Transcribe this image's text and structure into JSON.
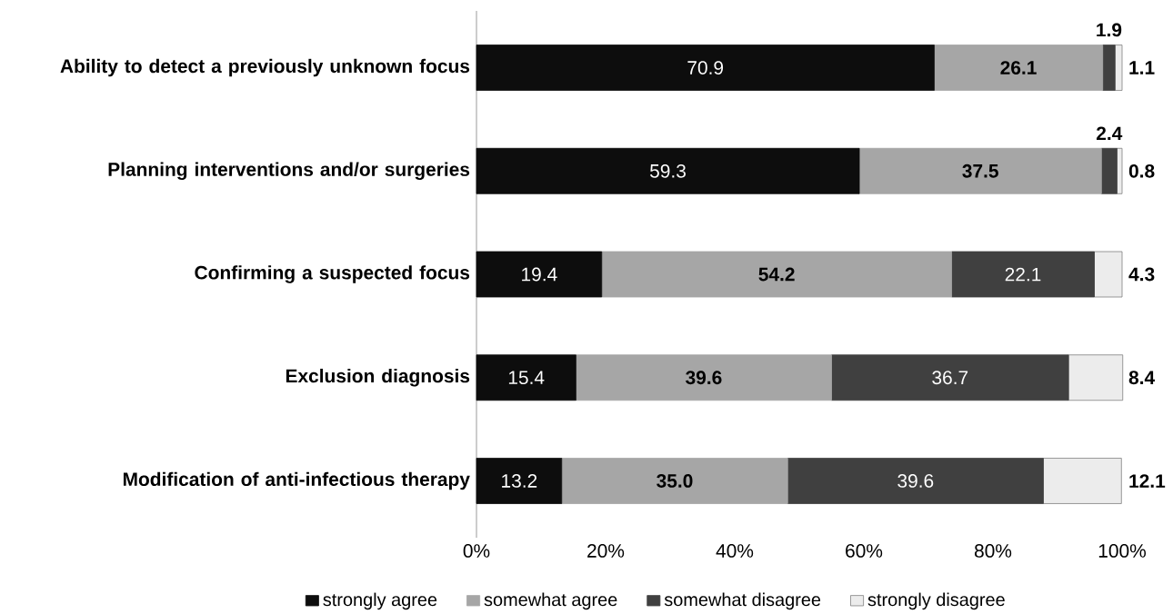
{
  "chart_data": {
    "type": "bar",
    "orientation": "horizontal",
    "stacked": true,
    "legend": "bottom",
    "categories": [
      "Ability to detect a previously unknown focus",
      "Planning interventions and/or surgeries",
      "Confirming a suspected focus",
      "Exclusion diagnosis",
      "Modification of anti-infectious therapy"
    ],
    "xlim": [
      0,
      100
    ],
    "xticks": [
      {
        "value": 0,
        "label": "0%"
      },
      {
        "value": 20,
        "label": "20%"
      },
      {
        "value": 40,
        "label": "40%"
      },
      {
        "value": 60,
        "label": "60%"
      },
      {
        "value": 80,
        "label": "80%"
      },
      {
        "value": 100,
        "label": "100%"
      }
    ],
    "series": [
      {
        "name": "strongly agree",
        "color": "#0d0d0d",
        "values": [
          70.9,
          59.3,
          19.4,
          15.4,
          13.2
        ],
        "value_labels": [
          "70.9",
          "59.3",
          "19.4",
          "15.4",
          "13.2"
        ]
      },
      {
        "name": "somewhat agree",
        "color": "#a6a6a6",
        "values": [
          26.1,
          37.5,
          54.2,
          39.6,
          35.0
        ],
        "value_labels": [
          "26.1",
          "37.5",
          "54.2",
          "39.6",
          "35.0"
        ]
      },
      {
        "name": "somewhat disagree",
        "color": "#404040",
        "values": [
          1.9,
          2.4,
          22.1,
          36.7,
          39.6
        ],
        "value_labels": [
          "1.9",
          "2.4",
          "22.1",
          "36.7",
          "39.6"
        ]
      },
      {
        "name": "strongly disagree",
        "color": "#ececec",
        "values": [
          1.1,
          0.8,
          4.3,
          8.4,
          12.1
        ],
        "value_labels": [
          "1.1",
          "0.8",
          "4.3",
          "8.4",
          "12.1"
        ]
      }
    ]
  }
}
